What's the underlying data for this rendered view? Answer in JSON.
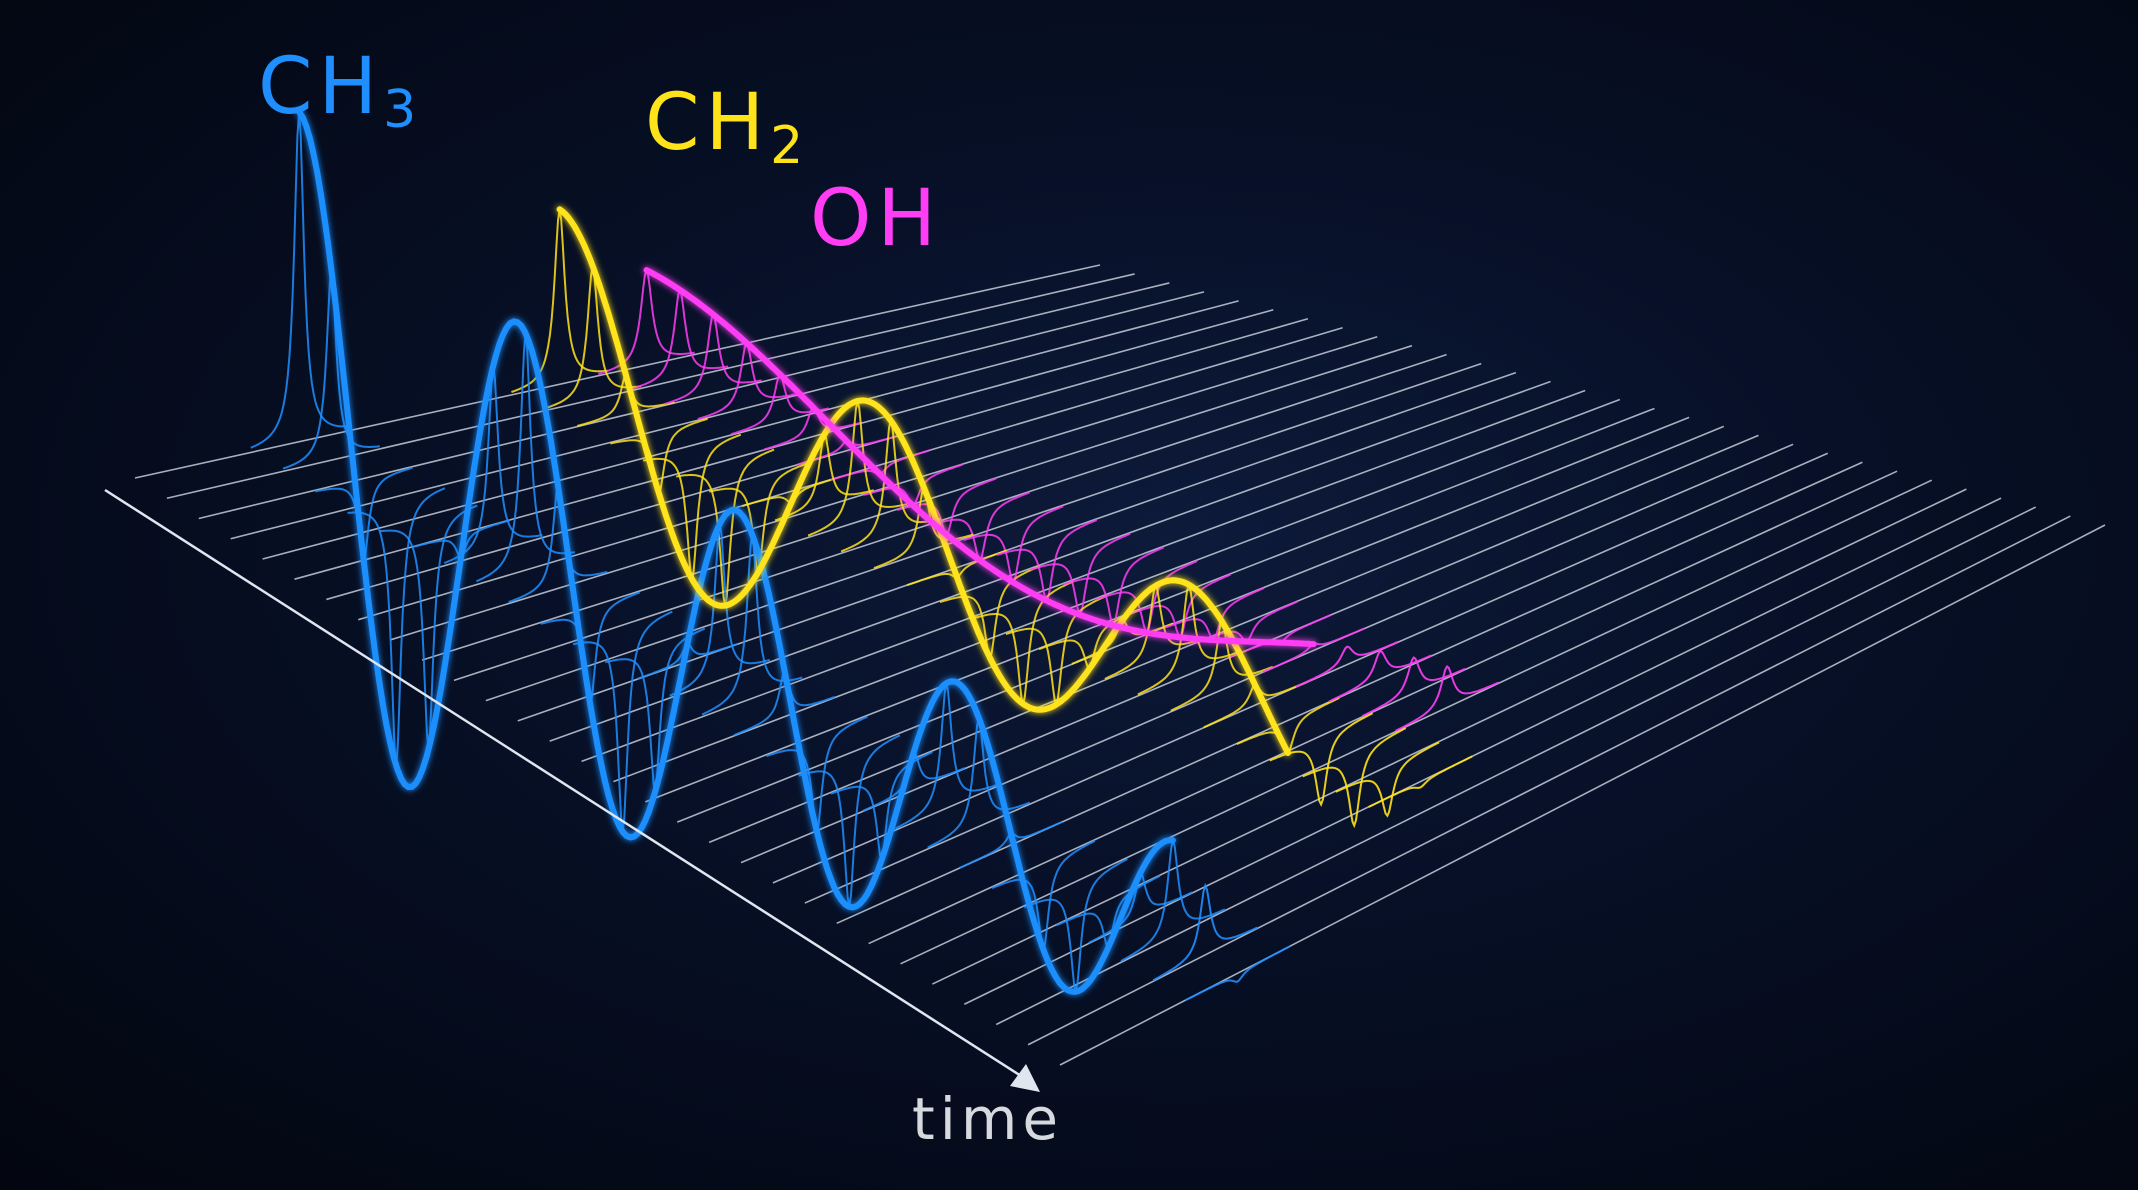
{
  "labels": {
    "ch3": {
      "main": "CH",
      "sub": "3"
    },
    "ch2": {
      "main": "CH",
      "sub": "2"
    },
    "oh": {
      "main": "OH"
    },
    "axis": "time"
  },
  "colors": {
    "background": "#050a1a",
    "ch3": "#1f8fff",
    "ch2": "#ffe31a",
    "oh": "#ff3df5",
    "grid": "#dfe6f0",
    "axis_text": "#d6d9de"
  },
  "icons": {
    "axis_arrow": "arrow-head-icon"
  }
}
